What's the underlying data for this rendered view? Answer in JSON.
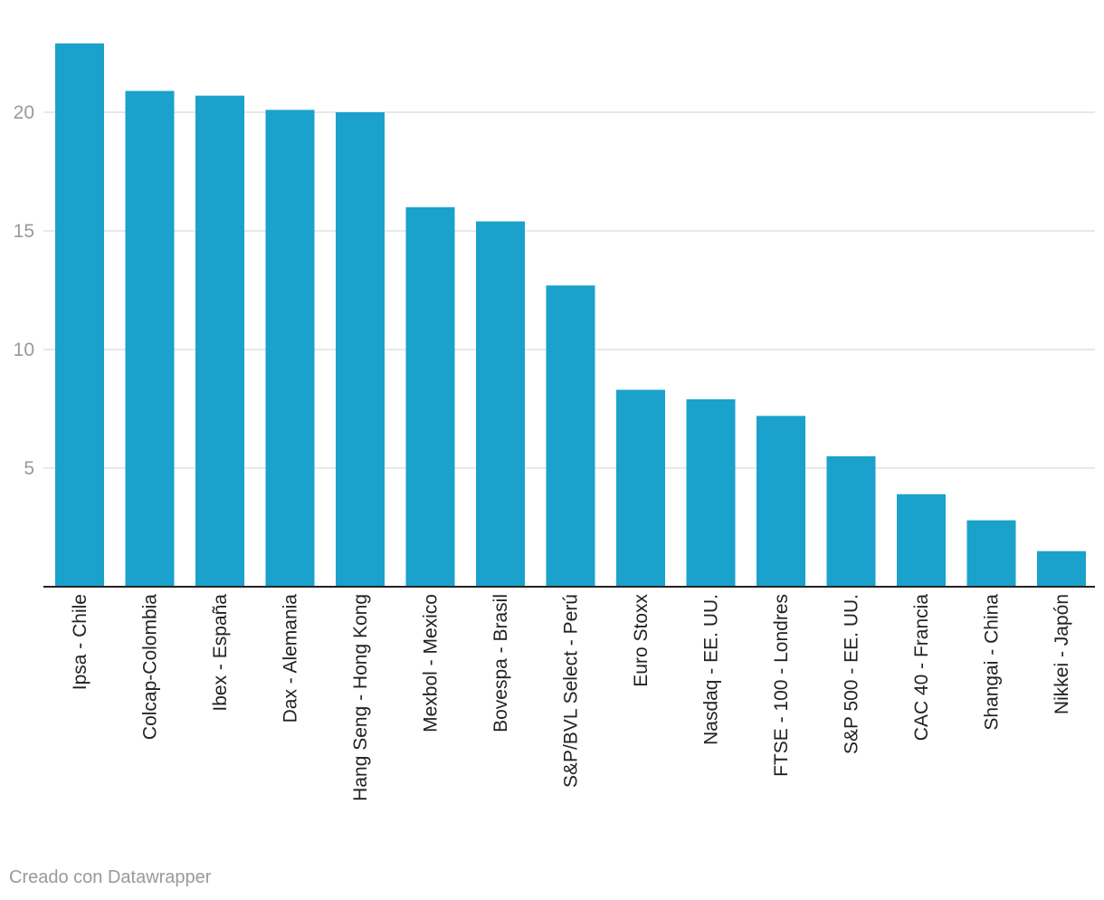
{
  "chart_data": {
    "type": "bar",
    "categories": [
      "Ipsa - Chile",
      "Colcap-Colombia",
      "Ibex - España",
      "Dax - Alemania",
      "Hang Seng - Hong Kong",
      "Mexbol - Mexico",
      "Bovespa - Brasil",
      "S&P/BVL Select - Perú",
      "Euro Stoxx",
      "Nasdaq - EE. UU.",
      "FTSE - 100 - Londres",
      "S&P 500 - EE. UU.",
      "CAC 40 - Francia",
      "Shangai - China",
      "Nikkei - Japón"
    ],
    "values": [
      22.9,
      20.9,
      20.7,
      20.1,
      20.0,
      16.0,
      15.4,
      12.7,
      8.3,
      7.9,
      7.2,
      5.5,
      3.9,
      2.8,
      1.5
    ],
    "ylim": [
      0,
      23
    ],
    "yticks": [
      5,
      10,
      15,
      20
    ],
    "grid": true,
    "bar_color": "#1aa1cc"
  },
  "footer": {
    "credit": "Creado con Datawrapper"
  }
}
